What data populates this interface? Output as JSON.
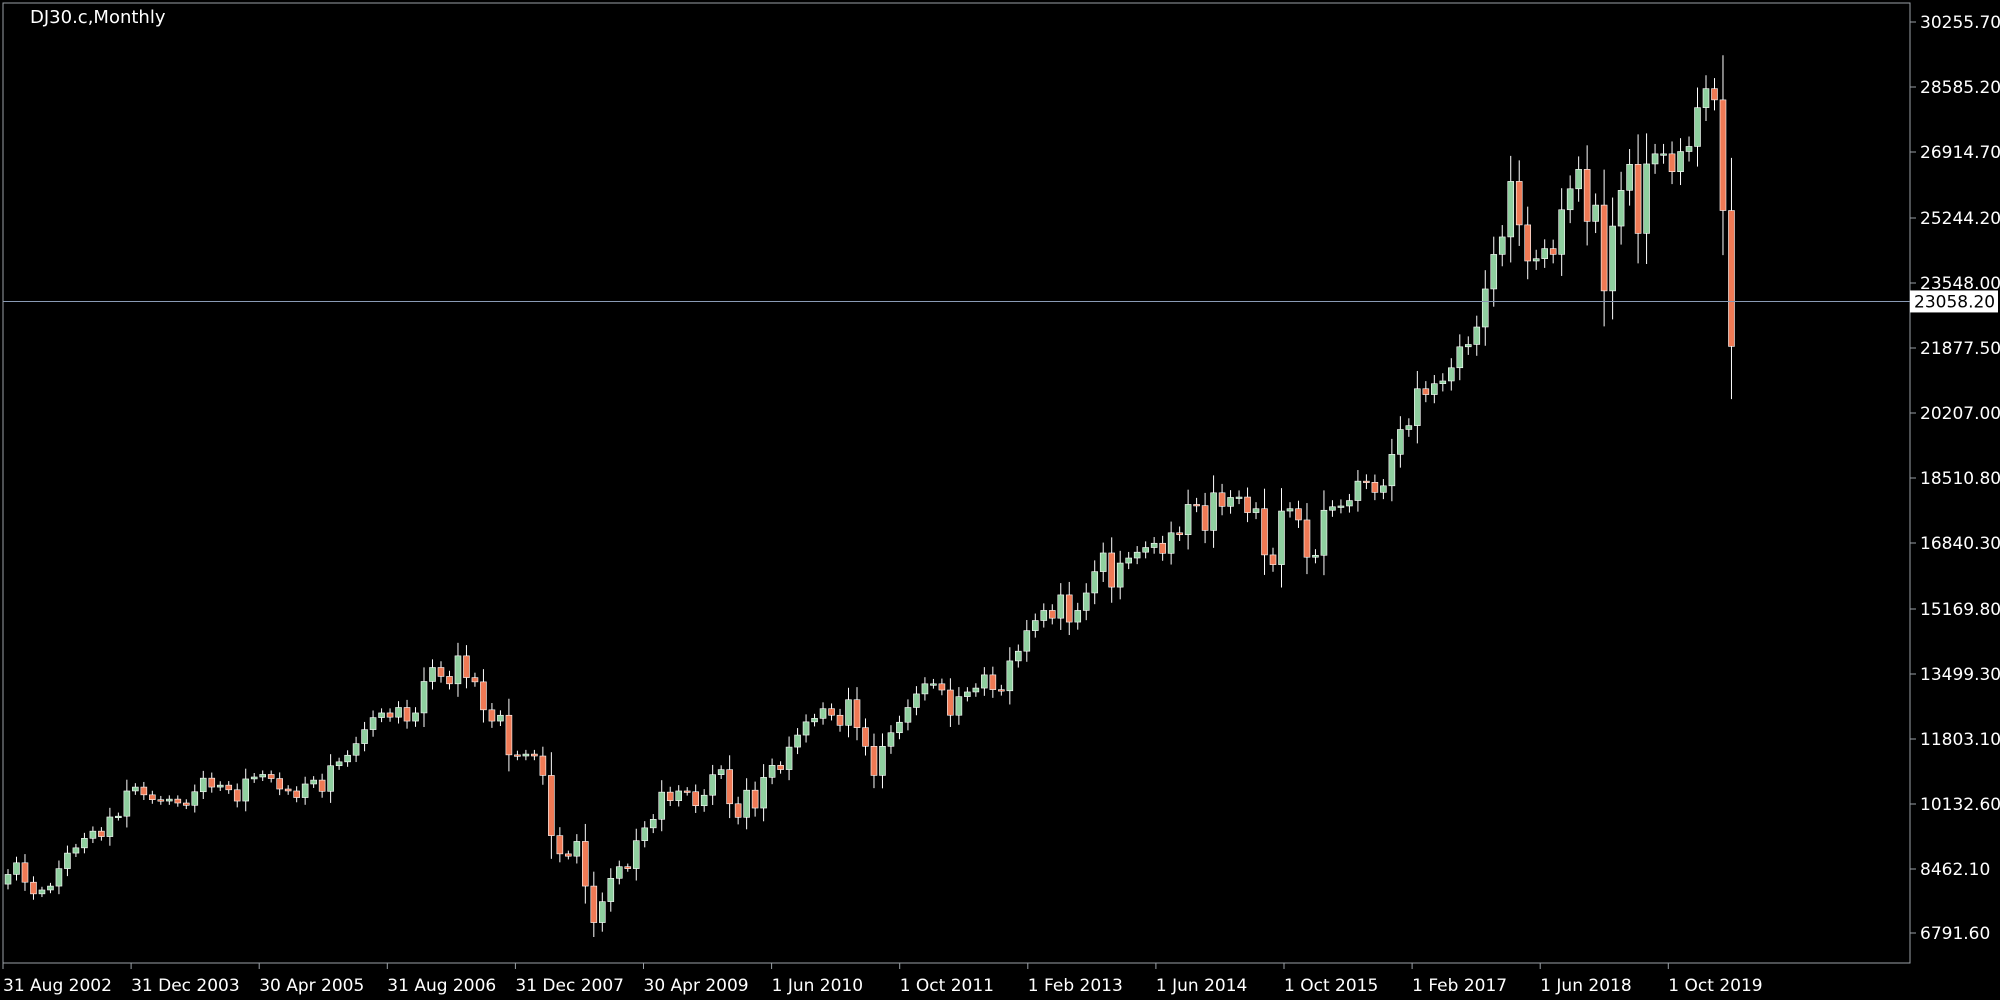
{
  "window": {
    "symbol_label": "DJ30.c,Monthly"
  },
  "colors": {
    "background": "#000000",
    "up_candle": "#8fcf9f",
    "down_candle": "#ef7a55",
    "wick": "#ffffff",
    "frame": "#9aa0a6",
    "current_price_line": "#8a9bb5",
    "text": "#ffffff"
  },
  "chart_data": {
    "type": "candlestick",
    "title": "DJ30.c,Monthly",
    "ylim": [
      6000,
      31000
    ],
    "yticks": [
      "30255.70",
      "28585.20",
      "26914.70",
      "25244.20",
      "23548.00",
      "21877.50",
      "20207.00",
      "18510.80",
      "16840.30",
      "15169.80",
      "13499.30",
      "11803.10",
      "10132.60",
      "8462.10",
      "6791.60"
    ],
    "current_price": "23058.20",
    "xtick_labels": [
      "31 Aug 2002",
      "31 Dec 2003",
      "30 Apr 2005",
      "31 Aug 2006",
      "31 Dec 2007",
      "30 Apr 2009",
      "1 Jun 2010",
      "1 Oct 2011",
      "1 Feb 2013",
      "1 Jun 2014",
      "1 Oct 2015",
      "1 Feb 2017",
      "1 Jun 2018",
      "1 Oct 2019"
    ],
    "close_series": [
      8300,
      8600,
      8100,
      7800,
      7900,
      8000,
      8450,
      8850,
      8985,
      9230,
      9415,
      9275,
      9780,
      9800,
      10450,
      10550,
      10350,
      10225,
      10190,
      10240,
      10140,
      10080,
      10430,
      10780,
      10550,
      10600,
      10480,
      10190,
      10760,
      10810,
      10875,
      10770,
      10500,
      10450,
      10280,
      10630,
      10730,
      10440,
      11100,
      11200,
      11370,
      11670,
      12030,
      12340,
      12460,
      12350,
      12600,
      12250,
      12460,
      13270,
      13630,
      13400,
      13210,
      13930,
      13370,
      13260,
      12540,
      12250,
      12400,
      11380,
      11350,
      11400,
      11350,
      10850,
      9300,
      8830,
      8770,
      9150,
      8000,
      7060,
      7600,
      8200,
      8500,
      8450,
      9170,
      9500,
      9720,
      10420,
      10200,
      10450,
      10430,
      10070,
      10340,
      10870,
      11000,
      10120,
      9770,
      10470,
      10010,
      10800,
      11110,
      11000,
      11580,
      11890,
      12230,
      12320,
      12570,
      12400,
      12140,
      12800,
      12080,
      11600,
      10850,
      11600,
      11950,
      12220,
      12600,
      12950,
      13210,
      13210,
      13050,
      12400,
      12880,
      13000,
      13100,
      13440,
      13060,
      13030,
      13800,
      14050,
      14580,
      14840,
      15100,
      14900,
      15500,
      14800,
      15100,
      15550,
      16100,
      16580,
      15700,
      16320,
      16450,
      16600,
      16720,
      16830,
      16570,
      17100,
      17050,
      17830,
      17800,
      17160,
      18130,
      17780,
      18010,
      18020,
      17620,
      17720,
      16530,
      16280,
      17660,
      17720,
      17430,
      16470,
      16520,
      17680,
      17770,
      17790,
      17930,
      18430,
      18400,
      18140,
      18310,
      19120,
      19760,
      19860,
      20810,
      20660,
      20940,
      21010,
      21350,
      21890,
      21950,
      22400,
      23380,
      24270,
      24720,
      26150,
      25030,
      24100,
      24160,
      24420,
      24270,
      25420,
      25960,
      26460,
      25120,
      25540,
      23330,
      25000,
      25920,
      26590,
      24810,
      26600,
      26860,
      26860,
      26400,
      26920,
      27050,
      28050,
      28540,
      28250,
      25400,
      21900
    ]
  }
}
